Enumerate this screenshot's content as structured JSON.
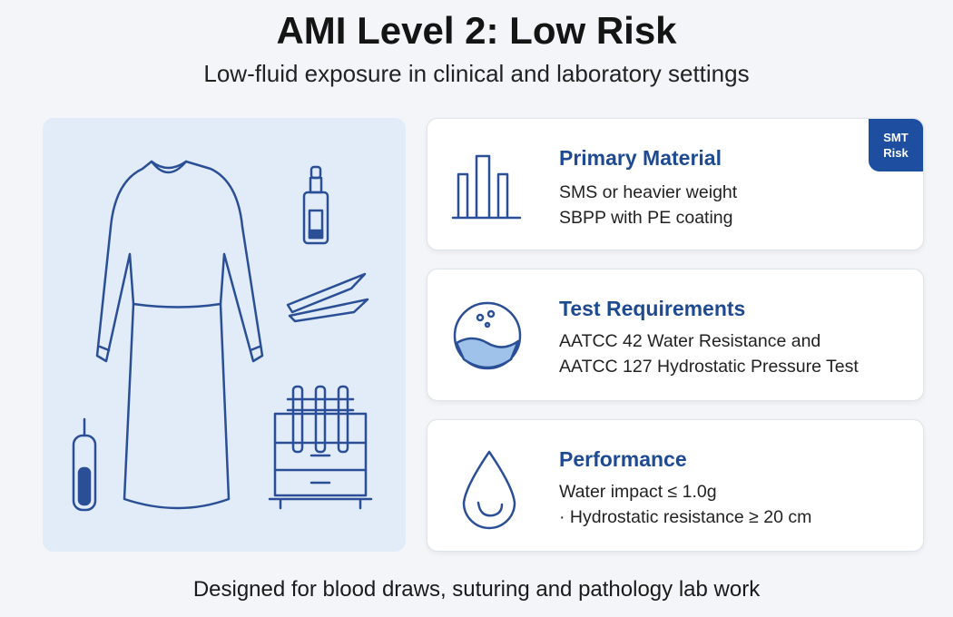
{
  "header": {
    "title": "AMI Level 2: Low Risk",
    "subtitle": "Low-fluid exposure in clinical and laboratory settings"
  },
  "badge": {
    "lines": [
      "SMT",
      "Risk"
    ]
  },
  "cards": [
    {
      "title": "Primary Material",
      "lines": [
        "SMS or heavier weight",
        "SBPP with PE coating"
      ]
    },
    {
      "title": "Test Requirements",
      "lines": [
        "AATCC 42 Water Resistance and",
        "AATCC 127 Hydrostatic Pressure Test"
      ]
    },
    {
      "title": "Performance",
      "lines": [
        "Water impact ≤ 1.0g",
        "· Hydrostatic resistance ≥ 20 cm"
      ]
    }
  ],
  "footer": {
    "text": "Designed for blood draws, suturing and pathology lab work"
  }
}
